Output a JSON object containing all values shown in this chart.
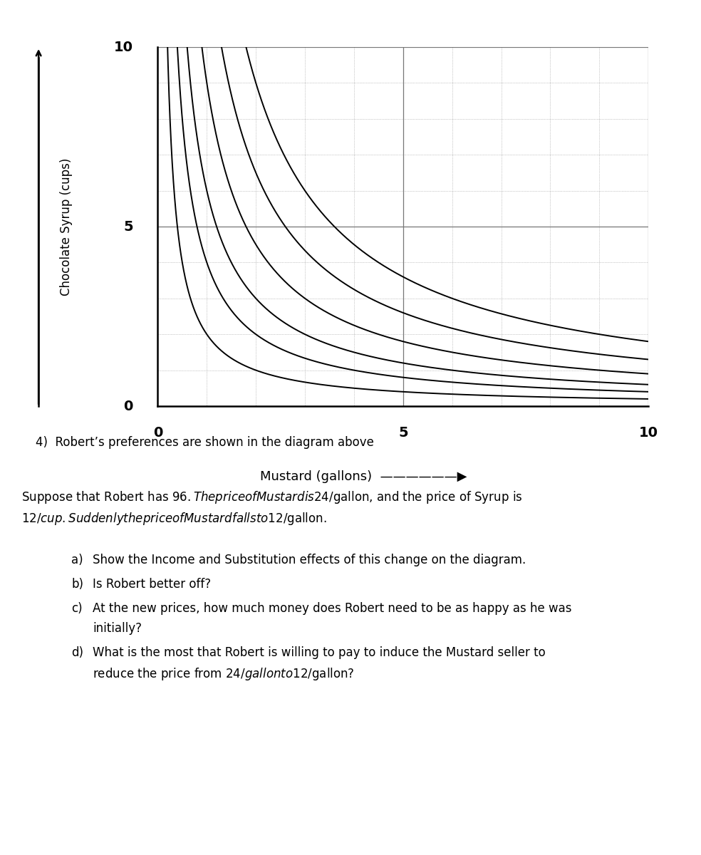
{
  "xlabel": "Mustard (gallons)",
  "ylabel": "Chocolate Syrup (cups)",
  "xlim": [
    0,
    10
  ],
  "ylim": [
    0,
    10
  ],
  "ic_constants": [
    2,
    4,
    6,
    9,
    13,
    18
  ],
  "curve_color": "#000000",
  "curve_linewidth": 1.4,
  "grid_major_color": "#777777",
  "grid_minor_color": "#999999",
  "grid_major_linewidth": 0.9,
  "grid_minor_linewidth": 0.5,
  "background_color": "#ffffff",
  "question_number": "4)",
  "question_text": "Robert’s preferences are shown in the diagram above",
  "body_text": "Suppose that Robert has $96. The price of Mustard is $24/gallon, and the price of Syrup is\n$12/cup. Suddenly the price of Mustard falls to $12/gallon.",
  "sub_a": "Show the Income and Substitution effects of this change on the diagram.",
  "sub_b": "Is Robert better off?",
  "sub_c": "At the new prices, how much money does Robert need to be as happy as he was\ninitially?",
  "sub_d": "What is the most that Robert is willing to pay to induce the Mustard seller to\nreduce the price from $24/gallon to $12/gallon?",
  "fig_width": 9.84,
  "fig_height": 12.0,
  "dpi": 100
}
